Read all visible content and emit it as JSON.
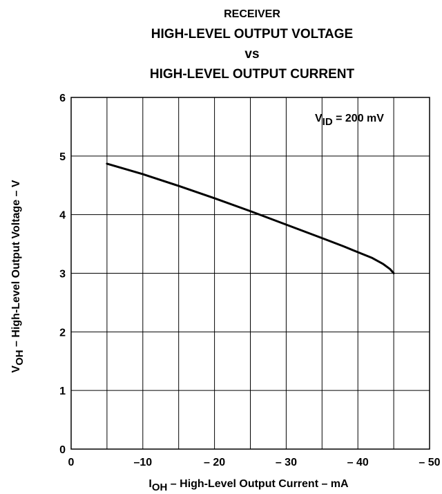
{
  "chart_data": {
    "type": "line",
    "title": {
      "line1": "RECEIVER",
      "line2": "HIGH-LEVEL OUTPUT VOLTAGE",
      "line3": "vs",
      "line4": "HIGH-LEVEL OUTPUT CURRENT"
    },
    "annotation": {
      "main": "V",
      "sub": "ID",
      "rest": " = 200 mV"
    },
    "xlabel": {
      "main": "I",
      "sub": "OH",
      "rest": " – High-Level Output Current – mA"
    },
    "ylabel": {
      "main": "V",
      "sub": "OH",
      "rest": " – High-Level Output Voltage – V"
    },
    "xlim": [
      0,
      -50
    ],
    "ylim": [
      0,
      6
    ],
    "xticks": [
      0,
      -10,
      -20,
      -30,
      -40,
      -50
    ],
    "xtick_labels": [
      "0",
      "–10",
      "– 20",
      "– 30",
      "– 40",
      "– 50"
    ],
    "yticks": [
      0,
      1,
      2,
      3,
      4,
      5,
      6
    ],
    "ytick_labels": [
      "0",
      "1",
      "2",
      "3",
      "4",
      "5",
      "6"
    ],
    "grid_x_step": -5,
    "grid_y_step": 1,
    "grid": true,
    "series": [
      {
        "x": [
          -5,
          -10,
          -15,
          -20,
          -25,
          -30,
          -35,
          -38,
          -40,
          -42,
          -43.5,
          -44.5,
          -45
        ],
        "y": [
          4.87,
          4.69,
          4.49,
          4.28,
          4.06,
          3.83,
          3.6,
          3.46,
          3.36,
          3.26,
          3.16,
          3.07,
          3.0
        ]
      }
    ],
    "line_color": "#000000"
  }
}
